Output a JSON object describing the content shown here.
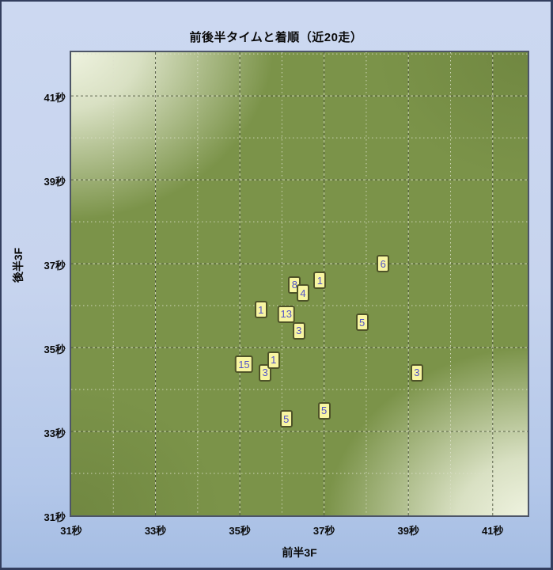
{
  "window": {
    "title": "前後半タイムと着順（近20走）"
  },
  "chart_data": {
    "type": "scatter",
    "title": "前後半タイムと着順（近20走）",
    "xlabel": "前半3F",
    "ylabel": "後半3F",
    "tick_unit": "秒",
    "xlim": [
      31,
      41.83
    ],
    "ylim": [
      31,
      42.04
    ],
    "x_ticks": [
      31,
      33,
      35,
      37,
      39,
      41
    ],
    "y_ticks": [
      31,
      33,
      35,
      37,
      39,
      41
    ],
    "x_tick_labels": [
      "31秒",
      "33秒",
      "35秒",
      "37秒",
      "39秒",
      "41秒"
    ],
    "y_tick_labels": [
      "31秒",
      "33秒",
      "35秒",
      "37秒",
      "39秒",
      "41秒"
    ],
    "x_minor_ticks": [
      32,
      34,
      36,
      38,
      40
    ],
    "y_minor_ticks": [
      32,
      34,
      36,
      38,
      40,
      42
    ],
    "grid": "both",
    "legend": "none",
    "points": [
      {
        "x": 38.4,
        "y": 37.0,
        "label": "6"
      },
      {
        "x": 36.9,
        "y": 36.6,
        "label": "1"
      },
      {
        "x": 36.3,
        "y": 36.5,
        "label": "8"
      },
      {
        "x": 36.5,
        "y": 36.3,
        "label": "4"
      },
      {
        "x": 35.5,
        "y": 35.9,
        "label": "1"
      },
      {
        "x": 36.1,
        "y": 35.8,
        "label": "13"
      },
      {
        "x": 36.4,
        "y": 35.4,
        "label": "3"
      },
      {
        "x": 37.9,
        "y": 35.6,
        "label": "5"
      },
      {
        "x": 35.1,
        "y": 34.6,
        "label": "15"
      },
      {
        "x": 35.6,
        "y": 34.4,
        "label": "3"
      },
      {
        "x": 35.8,
        "y": 34.7,
        "label": "1"
      },
      {
        "x": 39.2,
        "y": 34.4,
        "label": "3"
      },
      {
        "x": 37.0,
        "y": 33.5,
        "label": "5"
      },
      {
        "x": 36.1,
        "y": 33.3,
        "label": "5"
      }
    ],
    "colors": {
      "marker_fill": "#f8f5a2",
      "marker_border": "#4e5329",
      "marker_text": "#5253c8",
      "plot_base": "#7b9349",
      "plot_light_corner": "#f3f6e5",
      "grid_major_dark": "#49513b",
      "grid_major_light": "#e3e6d2",
      "grid_minor": "#dde1cb",
      "window_bg_top": "#ccd8f1",
      "window_bg_bottom": "#a5bde3",
      "window_border": "#333e5e",
      "plot_border": "#4d5568",
      "text": "#0a0a0a"
    }
  }
}
